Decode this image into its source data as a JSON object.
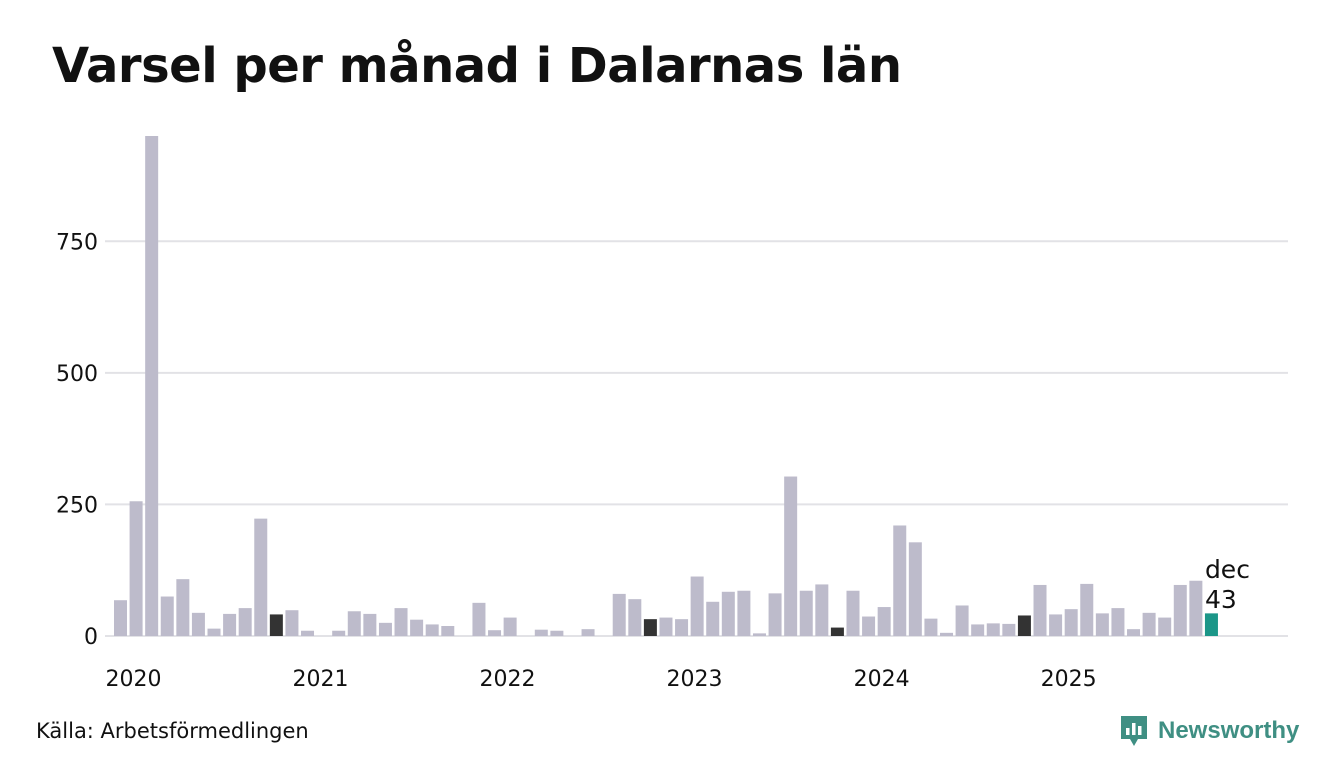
{
  "title": "Varsel per månad i Dalarnas län",
  "source": "Källa: Arbetsförmedlingen",
  "brand": {
    "name": "Newsworthy",
    "icon": "newsworthy-logo-icon"
  },
  "colors": {
    "bar": "#bdbbcb",
    "december": "#333333",
    "highlight": "#1b9688",
    "grid": "#e2e2e6",
    "brand": "#3f8f83"
  },
  "chart_data": {
    "type": "bar",
    "title": "Varsel per månad i Dalarnas län",
    "xlabel": "",
    "ylabel": "",
    "ylim": [
      0,
      950
    ],
    "yticks": [
      0,
      250,
      500,
      750
    ],
    "ytick_labels": [
      "0",
      "250",
      "500",
      "750"
    ],
    "x_labels": [
      {
        "label": "2020",
        "index": 0
      },
      {
        "label": "2021",
        "index": 12
      },
      {
        "label": "2022",
        "index": 24
      },
      {
        "label": "2023",
        "index": 36
      },
      {
        "label": "2024",
        "index": 48
      },
      {
        "label": "2025",
        "index": 60
      }
    ],
    "grid": true,
    "values": [
      68,
      256,
      950,
      75,
      108,
      44,
      14,
      42,
      53,
      223,
      41,
      49,
      10,
      0,
      10,
      47,
      42,
      25,
      53,
      31,
      22,
      19,
      0,
      63,
      11,
      35,
      0,
      12,
      10,
      0,
      13,
      0,
      80,
      70,
      32,
      35,
      32,
      113,
      65,
      84,
      86,
      5,
      81,
      303,
      86,
      98,
      16,
      86,
      37,
      55,
      210,
      178,
      33,
      6,
      58,
      22,
      24,
      23,
      39,
      97,
      41,
      51,
      99,
      43,
      53,
      13,
      44,
      35,
      97,
      105,
      43
    ],
    "december_indices": [
      10,
      34,
      46,
      58
    ],
    "highlight": {
      "index": 70,
      "label": "dec",
      "value_label": "43"
    }
  }
}
